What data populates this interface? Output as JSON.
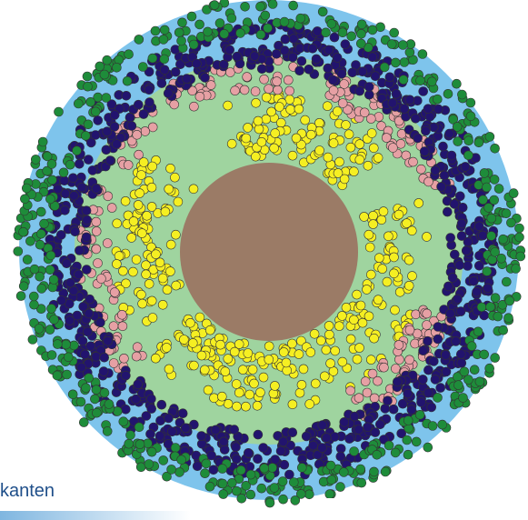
{
  "caption": "kanten",
  "colors": {
    "outer_ring": "#7ec4ec",
    "inner_field": "#9fd49f",
    "core": "#9b7b66",
    "dots_green": "#1e8c3a",
    "dots_navy": "#22146e",
    "dots_pink": "#e6a0a4",
    "dots_yellow": "#f5ef22"
  }
}
